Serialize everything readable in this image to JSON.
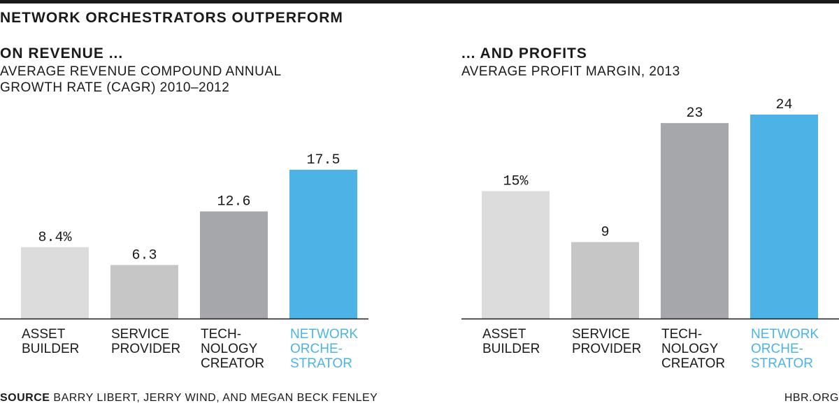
{
  "title": "NETWORK ORCHESTRATORS OUTPERFORM",
  "source_label": "SOURCE",
  "source_text": "BARRY LIBERT, JERRY WIND, AND MEGAN BECK FENLEY",
  "credit": "HBR.ORG",
  "colors": {
    "asset_builder": "#dcdcdd",
    "service_provider": "#c6c6c7",
    "technology_creator": "#a6a7aa",
    "network_orchestrator": "#4db3e6",
    "text": "#1a1a1a"
  },
  "chart_data": [
    {
      "type": "bar",
      "heading": "ON REVENUE ...",
      "subtitle_lines": [
        "AVERAGE REVENUE COMPOUND ANNUAL",
        "GROWTH RATE (CAGR) 2010–2012"
      ],
      "categories": [
        [
          "ASSET",
          "BUILDER"
        ],
        [
          "SERVICE",
          "PROVIDER"
        ],
        [
          "TECH-",
          "NOLOGY",
          "CREATOR"
        ],
        [
          "NETWORK",
          "ORCHE-",
          "STRATOR"
        ]
      ],
      "values": [
        8.4,
        6.3,
        12.6,
        17.5
      ],
      "value_labels": [
        "8.4%",
        "6.3",
        "12.6",
        "17.5"
      ],
      "ylim": [
        0,
        17.5
      ]
    },
    {
      "type": "bar",
      "heading": "... AND PROFITS",
      "subtitle_lines": [
        "AVERAGE PROFIT MARGIN, 2013"
      ],
      "categories": [
        [
          "ASSET",
          "BUILDER"
        ],
        [
          "SERVICE",
          "PROVIDER"
        ],
        [
          "TECH-",
          "NOLOGY",
          "CREATOR"
        ],
        [
          "NETWORK",
          "ORCHE-",
          "STRATOR"
        ]
      ],
      "values": [
        15,
        9,
        23,
        24
      ],
      "value_labels": [
        "15%",
        "9",
        "23",
        "24"
      ],
      "ylim": [
        0,
        24
      ]
    }
  ]
}
